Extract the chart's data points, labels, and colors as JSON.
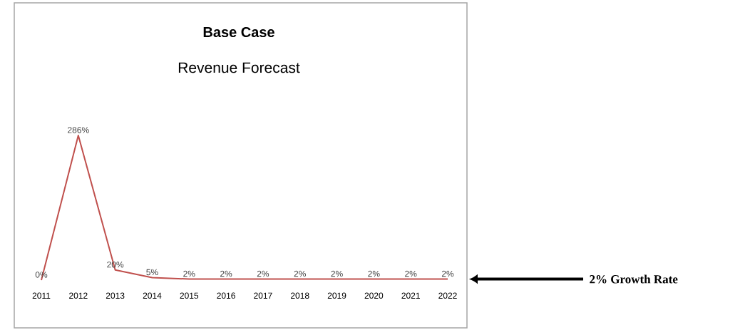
{
  "chart_data": {
    "type": "line",
    "title": "Base Case",
    "subtitle": "Revenue Forecast",
    "categories": [
      "2011",
      "2012",
      "2013",
      "2014",
      "2015",
      "2016",
      "2017",
      "2018",
      "2019",
      "2020",
      "2021",
      "2022"
    ],
    "values": [
      0,
      286,
      20,
      5,
      2,
      2,
      2,
      2,
      2,
      2,
      2,
      2
    ],
    "value_labels": [
      "0%",
      "286%",
      "20%",
      "5%",
      "2%",
      "2%",
      "2%",
      "2%",
      "2%",
      "2%",
      "2%",
      "2%"
    ],
    "color": "#c0504d",
    "marker": "none",
    "line_style": "solid",
    "annotations": [
      "2% Growth Rate"
    ]
  }
}
